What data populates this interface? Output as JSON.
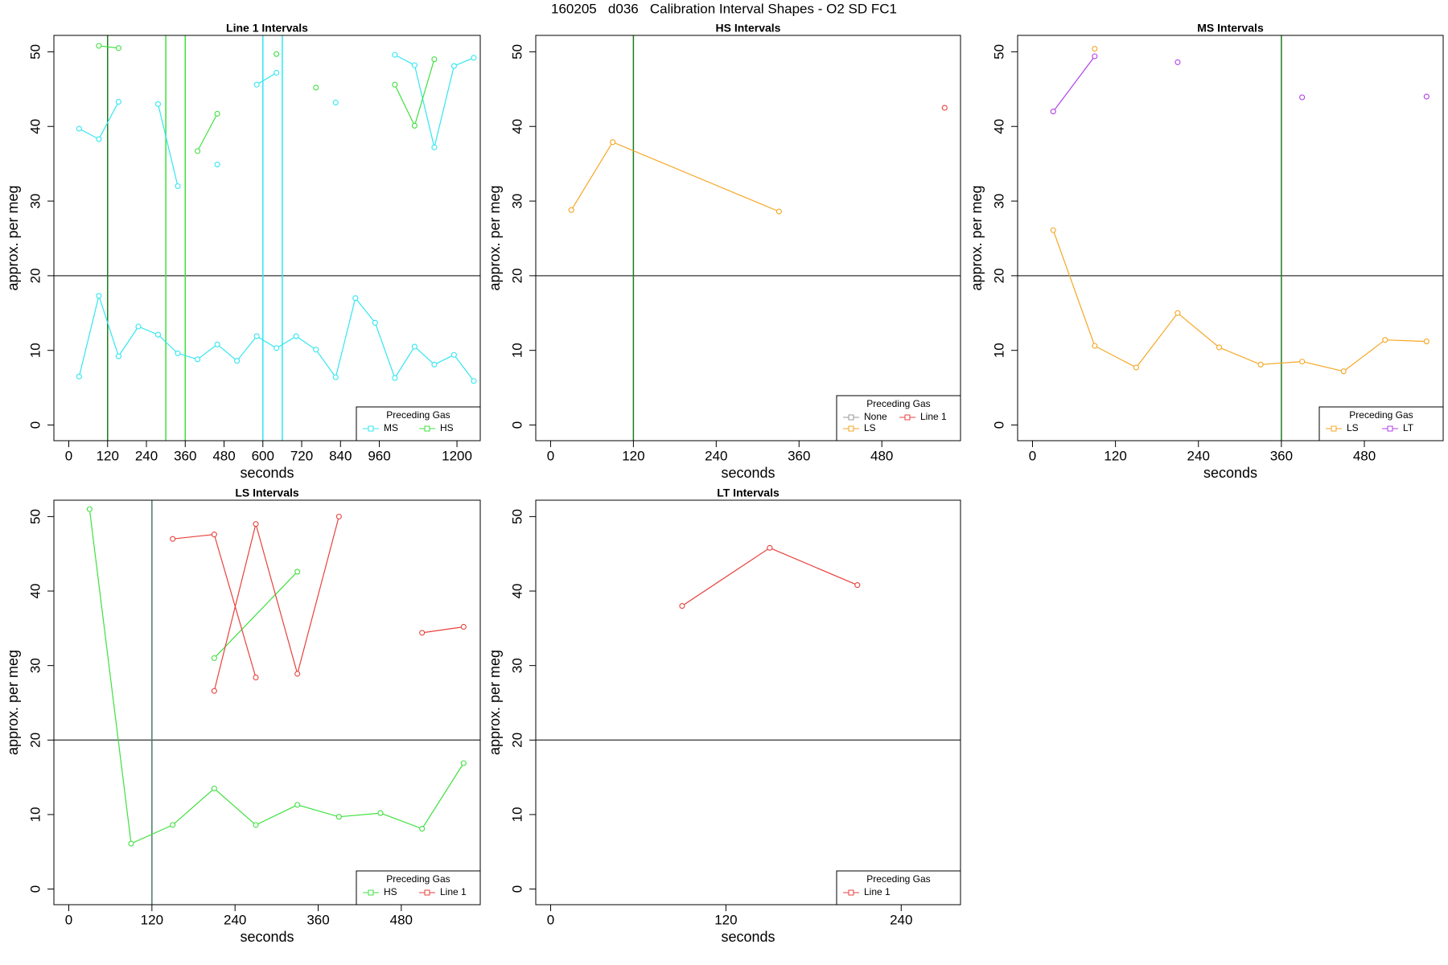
{
  "title": "160205   d036   Calibration Interval Shapes - O2 SD FC1",
  "chart_data": [
    {
      "type": "line",
      "title": "Line 1 Intervals",
      "xlabel": "seconds",
      "ylabel": "approx. per meg",
      "xlim": [
        -46,
        1272
      ],
      "ylim": [
        -2.1,
        52.2
      ],
      "xticks": [
        0,
        120,
        240,
        360,
        480,
        600,
        720,
        840,
        960,
        1200
      ],
      "yticks": [
        0,
        10,
        20,
        30,
        40,
        50
      ],
      "hlines": [
        20
      ],
      "vlines": [
        {
          "x": 120,
          "color": "#1e7b1e"
        },
        {
          "x": 300,
          "color": "#3fe03f"
        },
        {
          "x": 360,
          "color": "#3fe03f"
        },
        {
          "x": 600,
          "color": "#33e6f2"
        },
        {
          "x": 660,
          "color": "#33e6f2"
        }
      ],
      "legend_title": "Preceding Gas",
      "legend": "bottom right",
      "series": [
        {
          "name": "MS",
          "color": "#33e6f2",
          "x": [
            32,
            93,
            154,
            215,
            276,
            337,
            398,
            459,
            520,
            581,
            642,
            703,
            764,
            825,
            886,
            947,
            1008,
            1069,
            1130,
            1191,
            1252
          ],
          "values": [
            6.5,
            17.3,
            9.2,
            13.2,
            12.1,
            9.6,
            8.8,
            10.8,
            8.6,
            11.9,
            10.3,
            11.9,
            10.1,
            6.4,
            17,
            13.7,
            6.3,
            10.5,
            8.1,
            9.4,
            5.9
          ]
        },
        {
          "name": "MS",
          "color": "#33e6f2",
          "x": [
            32,
            93,
            154,
            215,
            276,
            337,
            398,
            459,
            520,
            581,
            642,
            703,
            764,
            825,
            886,
            947,
            1008,
            1069,
            1130,
            1191,
            1252
          ],
          "values": [
            39.7,
            38.3,
            43.3,
            null,
            43,
            32,
            null,
            34.9,
            null,
            45.6,
            47.2,
            null,
            null,
            43.2,
            null,
            null,
            49.6,
            48.2,
            37.2,
            48.1,
            49.2
          ]
        },
        {
          "name": "HS",
          "color": "#3fe03f",
          "x": [
            32,
            93,
            154,
            215,
            276,
            337,
            398,
            459,
            520,
            581,
            642,
            703,
            764,
            825,
            886,
            947,
            1008,
            1069,
            1130,
            1191,
            1252
          ],
          "values": [
            null,
            50.8,
            50.5,
            null,
            null,
            null,
            36.7,
            41.7,
            null,
            null,
            49.7,
            null,
            45.2,
            null,
            null,
            null,
            45.6,
            40.1,
            49,
            null,
            null
          ]
        }
      ]
    },
    {
      "type": "line",
      "title": "HS Intervals",
      "xlabel": "seconds",
      "ylabel": "approx. per meg",
      "xlim": [
        -21.5,
        594
      ],
      "ylim": [
        -2.1,
        52.2
      ],
      "xticks": [
        0,
        120,
        240,
        360,
        480
      ],
      "yticks": [
        0,
        10,
        20,
        30,
        40,
        50
      ],
      "hlines": [
        20
      ],
      "vlines": [
        {
          "x": 120,
          "color": "#1e7b1e"
        }
      ],
      "legend_title": "Preceding Gas",
      "legend": "bottom right",
      "series": [
        {
          "name": "None",
          "color": "#999999",
          "x": [],
          "values": []
        },
        {
          "name": "Line 1",
          "color": "#e8413c",
          "x": [
            571
          ],
          "values": [
            42.5
          ]
        },
        {
          "name": "LS",
          "color": "#f5a623",
          "x": [
            30,
            90,
            331
          ],
          "values": [
            28.8,
            37.9,
            28.6
          ]
        }
      ]
    },
    {
      "type": "line",
      "title": "MS Intervals",
      "xlabel": "seconds",
      "ylabel": "approx. per meg",
      "xlim": [
        -21.5,
        594
      ],
      "ylim": [
        -2.1,
        52.2
      ],
      "xticks": [
        0,
        120,
        240,
        360,
        480
      ],
      "yticks": [
        0,
        10,
        20,
        30,
        40,
        50
      ],
      "hlines": [
        20
      ],
      "vlines": [
        {
          "x": 360,
          "color": "#1e7b1e"
        }
      ],
      "legend_title": "Preceding Gas",
      "legend": "bottom right",
      "series": [
        {
          "name": "LS",
          "color": "#f5a623",
          "x": [
            30,
            90,
            150,
            210,
            270,
            330,
            390,
            450,
            510,
            570
          ],
          "values": [
            26.1,
            10.6,
            7.7,
            15,
            10.4,
            8.1,
            8.5,
            7.2,
            11.4,
            11.2
          ]
        },
        {
          "name": "LS",
          "color": "#f5a623",
          "x": [
            90
          ],
          "values": [
            50.4
          ]
        },
        {
          "name": "LT",
          "color": "#b040e8",
          "x": [
            30,
            90,
            150,
            210,
            270,
            330,
            390,
            450,
            510,
            570
          ],
          "values": [
            42,
            49.4,
            null,
            48.6,
            null,
            null,
            43.9,
            null,
            null,
            44
          ]
        }
      ]
    },
    {
      "type": "line",
      "title": "LS Intervals",
      "xlabel": "seconds",
      "ylabel": "approx. per meg",
      "xlim": [
        -21.5,
        594
      ],
      "ylim": [
        -2.1,
        52.2
      ],
      "xticks": [
        0,
        120,
        240,
        360,
        480
      ],
      "yticks": [
        0,
        10,
        20,
        30,
        40,
        50
      ],
      "hlines": [
        20
      ],
      "vlines": [
        {
          "x": 120,
          "color": "#4a7a6a"
        }
      ],
      "legend_title": "Preceding Gas",
      "legend": "bottom right",
      "series": [
        {
          "name": "HS",
          "color": "#3fe03f",
          "x": [
            30,
            90,
            150,
            210,
            270,
            330,
            390,
            450,
            510,
            570
          ],
          "values": [
            51,
            6.1,
            8.6,
            13.5,
            8.6,
            11.3,
            9.7,
            10.2,
            8.1,
            16.9
          ]
        },
        {
          "name": "HS",
          "color": "#3fe03f",
          "x": [
            210,
            330
          ],
          "values": [
            31,
            42.6
          ]
        },
        {
          "name": "Line 1",
          "color": "#e8413c",
          "x": [
            150,
            210,
            270
          ],
          "values": [
            47,
            47.6,
            28.4
          ]
        },
        {
          "name": "Line 1",
          "color": "#e8413c",
          "x": [
            210,
            270,
            330,
            390,
            450,
            510,
            570
          ],
          "values": [
            26.6,
            49,
            28.9,
            50,
            null,
            34.4,
            35.2
          ]
        }
      ]
    },
    {
      "type": "line",
      "title": "LT Intervals",
      "xlabel": "seconds",
      "ylabel": "approx. per meg",
      "xlim": [
        -10.2,
        280.6
      ],
      "ylim": [
        -2.1,
        52.2
      ],
      "xticks": [
        0,
        120,
        240
      ],
      "yticks": [
        0,
        10,
        20,
        30,
        40,
        50
      ],
      "hlines": [
        20
      ],
      "vlines": [],
      "legend_title": "Preceding Gas",
      "legend": "bottom right",
      "series": [
        {
          "name": "Line 1",
          "color": "#e8413c",
          "x": [
            90,
            150,
            210
          ],
          "values": [
            38,
            45.8,
            40.8
          ]
        }
      ]
    }
  ]
}
